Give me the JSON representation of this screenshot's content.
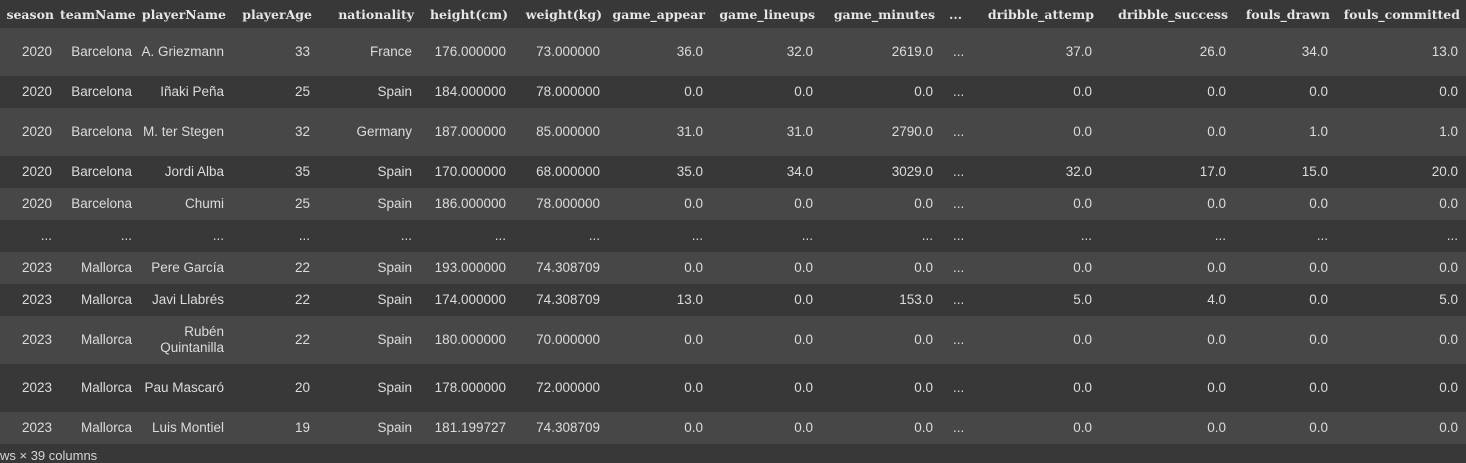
{
  "table": {
    "columns": [
      "season",
      "teamName",
      "playerName",
      "playerAge",
      "nationality",
      "height(cm)",
      "weight(kg)",
      "game_appear",
      "game_lineups",
      "game_minutes",
      "...",
      "dribble_attemp",
      "dribble_success",
      "fouls_drawn",
      "fouls_committed"
    ],
    "rows": [
      [
        "2020",
        "Barcelona",
        "A. Griezmann",
        "33",
        "France",
        "176.000000",
        "73.000000",
        "36.0",
        "32.0",
        "2619.0",
        "...",
        "37.0",
        "26.0",
        "34.0",
        "13.0"
      ],
      [
        "2020",
        "Barcelona",
        "Iñaki Peña",
        "25",
        "Spain",
        "184.000000",
        "78.000000",
        "0.0",
        "0.0",
        "0.0",
        "...",
        "0.0",
        "0.0",
        "0.0",
        "0.0"
      ],
      [
        "2020",
        "Barcelona",
        "M. ter Stegen",
        "32",
        "Germany",
        "187.000000",
        "85.000000",
        "31.0",
        "31.0",
        "2790.0",
        "...",
        "0.0",
        "0.0",
        "1.0",
        "1.0"
      ],
      [
        "2020",
        "Barcelona",
        "Jordi Alba",
        "35",
        "Spain",
        "170.000000",
        "68.000000",
        "35.0",
        "34.0",
        "3029.0",
        "...",
        "32.0",
        "17.0",
        "15.0",
        "20.0"
      ],
      [
        "2020",
        "Barcelona",
        "Chumi",
        "25",
        "Spain",
        "186.000000",
        "78.000000",
        "0.0",
        "0.0",
        "0.0",
        "...",
        "0.0",
        "0.0",
        "0.0",
        "0.0"
      ],
      [
        "...",
        "...",
        "...",
        "...",
        "...",
        "...",
        "...",
        "...",
        "...",
        "...",
        "...",
        "...",
        "...",
        "...",
        "..."
      ],
      [
        "2023",
        "Mallorca",
        "Pere García",
        "22",
        "Spain",
        "193.000000",
        "74.308709",
        "0.0",
        "0.0",
        "0.0",
        "...",
        "0.0",
        "0.0",
        "0.0",
        "0.0"
      ],
      [
        "2023",
        "Mallorca",
        "Javi Llabrés",
        "22",
        "Spain",
        "174.000000",
        "74.308709",
        "13.0",
        "0.0",
        "153.0",
        "...",
        "5.0",
        "4.0",
        "0.0",
        "5.0"
      ],
      [
        "2023",
        "Mallorca",
        "Rubén Quintanilla",
        "22",
        "Spain",
        "180.000000",
        "70.000000",
        "0.0",
        "0.0",
        "0.0",
        "...",
        "0.0",
        "0.0",
        "0.0",
        "0.0"
      ],
      [
        "2023",
        "Mallorca",
        "Pau Mascaró",
        "20",
        "Spain",
        "178.000000",
        "72.000000",
        "0.0",
        "0.0",
        "0.0",
        "...",
        "0.0",
        "0.0",
        "0.0",
        "0.0"
      ],
      [
        "2023",
        "Mallorca",
        "Luis Montiel",
        "19",
        "Spain",
        "181.199727",
        "74.308709",
        "0.0",
        "0.0",
        "0.0",
        "...",
        "0.0",
        "0.0",
        "0.0",
        "0.0"
      ]
    ]
  },
  "footer": {
    "shape": "ws × 39 columns"
  }
}
